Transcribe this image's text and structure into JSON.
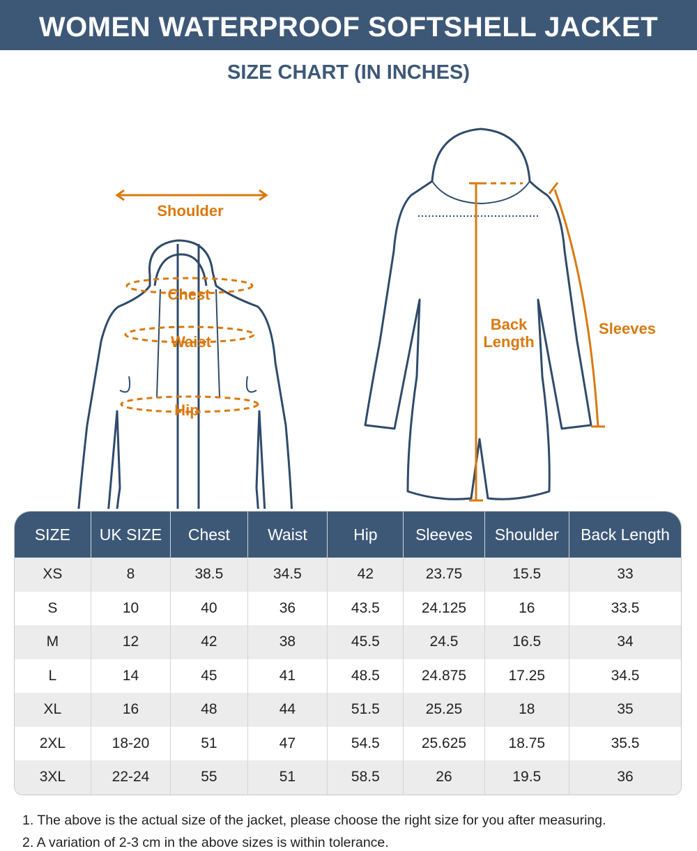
{
  "header": {
    "title": "WOMEN WATERPROOF SOFTSHELL JACKET",
    "subtitle": "SIZE CHART (IN INCHES)"
  },
  "diagram": {
    "shoulder": "Shoulder",
    "chest": "Chest",
    "waist": "Waist",
    "hip": "Hip",
    "back_length": [
      "Back",
      "Length"
    ],
    "sleeves": "Sleeves"
  },
  "table": {
    "headers": [
      "SIZE",
      "UK SIZE",
      "Chest",
      "Waist",
      "Hip",
      "Sleeves",
      "Shoulder",
      "Back Length"
    ],
    "rows": [
      [
        "XS",
        "8",
        "38.5",
        "34.5",
        "42",
        "23.75",
        "15.5",
        "33"
      ],
      [
        "S",
        "10",
        "40",
        "36",
        "43.5",
        "24.125",
        "16",
        "33.5"
      ],
      [
        "M",
        "12",
        "42",
        "38",
        "45.5",
        "24.5",
        "16.5",
        "34"
      ],
      [
        "L",
        "14",
        "45",
        "41",
        "48.5",
        "24.875",
        "17.25",
        "34.5"
      ],
      [
        "XL",
        "16",
        "48",
        "44",
        "51.5",
        "25.25",
        "18",
        "35"
      ],
      [
        "2XL",
        "18-20",
        "51",
        "47",
        "54.5",
        "25.625",
        "18.75",
        "35.5"
      ],
      [
        "3XL",
        "22-24",
        "55",
        "51",
        "58.5",
        "26",
        "19.5",
        "36"
      ]
    ]
  },
  "notes": [
    "1. The above is the actual size of the jacket, please choose the right size for you after measuring.",
    "2. A variation of 2-3 cm in the above sizes is within tolerance."
  ]
}
